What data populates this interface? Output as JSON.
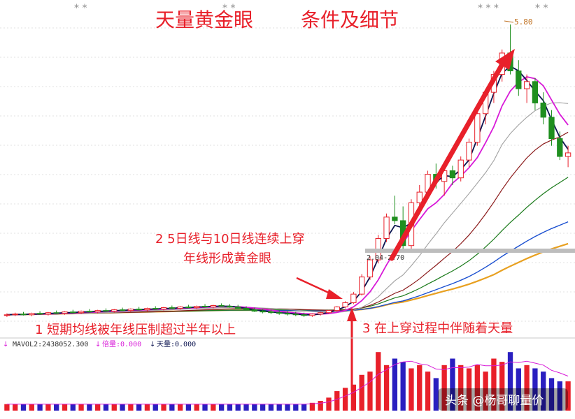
{
  "header": {
    "title_left": "天量黄金眼",
    "title_right": "条件及细节",
    "stars_left": "* *",
    "stars_mid": "* *",
    "stars_right_a": "* * *",
    "stars_right_b": "* *"
  },
  "annotations": {
    "point1": "1 短期均线被年线压制超过半年以上",
    "point2_line1": "2  5日线与10日线连续上穿",
    "point2_line2": "年线形成黄金眼",
    "point3": "3 在上穿过程中伴随着天量",
    "peak_label": "5.80",
    "range_label": "2.04-2.70"
  },
  "volume_header": {
    "mavol_label": "MAVOL2:2438052.300",
    "ratio_label": "倍量:0.000",
    "heavy_label": "天量:0.000",
    "arrow_glyph": "↓",
    "left_marker": "↓"
  },
  "watermark": "头条 @杨哥聊量价",
  "colors": {
    "up": "#e8202a",
    "down": "#1f8f1f",
    "vol_down": "#2a1fc0",
    "ma5": "#0c1450",
    "ma10": "#d81ad8",
    "ma20": "#a0a0a0",
    "ma60": "#8b1a1a",
    "ma120": "#1a7a1a",
    "ma250": "#1a4fd0",
    "ma_year": "#e8a020",
    "title": "#e8202a",
    "annotation": "#e8202a"
  },
  "chart_data": {
    "type": "candlestick",
    "title": "天量黄金眼 条件及细节",
    "price": {
      "high_marker": 5.8,
      "support_band": [
        2.04,
        2.7
      ],
      "candles": [
        [
          1.72,
          1.75,
          1.7,
          1.73
        ],
        [
          1.73,
          1.76,
          1.71,
          1.74
        ],
        [
          1.74,
          1.77,
          1.72,
          1.73
        ],
        [
          1.73,
          1.76,
          1.71,
          1.75
        ],
        [
          1.75,
          1.78,
          1.73,
          1.74
        ],
        [
          1.74,
          1.77,
          1.72,
          1.76
        ],
        [
          1.76,
          1.79,
          1.74,
          1.75
        ],
        [
          1.75,
          1.78,
          1.73,
          1.77
        ],
        [
          1.77,
          1.8,
          1.75,
          1.76
        ],
        [
          1.76,
          1.79,
          1.74,
          1.78
        ],
        [
          1.78,
          1.81,
          1.76,
          1.77
        ],
        [
          1.77,
          1.8,
          1.75,
          1.79
        ],
        [
          1.79,
          1.82,
          1.77,
          1.78
        ],
        [
          1.78,
          1.81,
          1.76,
          1.8
        ],
        [
          1.8,
          1.83,
          1.78,
          1.79
        ],
        [
          1.79,
          1.82,
          1.77,
          1.81
        ],
        [
          1.81,
          1.84,
          1.79,
          1.8
        ],
        [
          1.8,
          1.83,
          1.78,
          1.82
        ],
        [
          1.82,
          1.85,
          1.8,
          1.81
        ],
        [
          1.81,
          1.84,
          1.79,
          1.83
        ],
        [
          1.83,
          1.86,
          1.81,
          1.82
        ],
        [
          1.82,
          1.85,
          1.8,
          1.84
        ],
        [
          1.84,
          1.87,
          1.82,
          1.83
        ],
        [
          1.83,
          1.86,
          1.81,
          1.85
        ],
        [
          1.85,
          1.88,
          1.83,
          1.84
        ],
        [
          1.84,
          1.87,
          1.82,
          1.86
        ],
        [
          1.86,
          1.89,
          1.84,
          1.85
        ],
        [
          1.85,
          1.88,
          1.83,
          1.84
        ],
        [
          1.84,
          1.87,
          1.81,
          1.82
        ],
        [
          1.82,
          1.85,
          1.79,
          1.8
        ],
        [
          1.8,
          1.83,
          1.77,
          1.78
        ],
        [
          1.78,
          1.81,
          1.75,
          1.77
        ],
        [
          1.77,
          1.8,
          1.74,
          1.76
        ],
        [
          1.76,
          1.79,
          1.73,
          1.75
        ],
        [
          1.75,
          1.78,
          1.72,
          1.74
        ],
        [
          1.74,
          1.77,
          1.71,
          1.73
        ],
        [
          1.73,
          1.76,
          1.7,
          1.72
        ],
        [
          1.72,
          1.75,
          1.7,
          1.74
        ],
        [
          1.74,
          1.77,
          1.72,
          1.76
        ],
        [
          1.76,
          1.8,
          1.74,
          1.79
        ],
        [
          1.79,
          1.85,
          1.77,
          1.84
        ],
        [
          1.84,
          1.92,
          1.82,
          1.9
        ],
        [
          1.9,
          2.05,
          1.88,
          2.02
        ],
        [
          2.02,
          2.3,
          2.0,
          2.26
        ],
        [
          2.26,
          2.55,
          2.22,
          2.5
        ],
        [
          2.5,
          2.85,
          2.45,
          2.8
        ],
        [
          2.8,
          3.15,
          2.75,
          3.1
        ],
        [
          3.1,
          3.4,
          3.0,
          3.05
        ],
        [
          3.05,
          3.25,
          2.62,
          2.7
        ],
        [
          2.7,
          3.35,
          2.65,
          3.3
        ],
        [
          3.3,
          3.55,
          3.2,
          3.45
        ],
        [
          3.45,
          3.75,
          3.35,
          3.7
        ],
        [
          3.7,
          3.85,
          3.5,
          3.6
        ],
        [
          3.6,
          3.8,
          3.4,
          3.75
        ],
        [
          3.75,
          3.82,
          3.55,
          3.65
        ],
        [
          3.65,
          3.95,
          3.6,
          3.9
        ],
        [
          3.9,
          4.2,
          3.8,
          4.15
        ],
        [
          4.15,
          4.6,
          4.1,
          4.55
        ],
        [
          4.55,
          4.9,
          4.4,
          4.85
        ],
        [
          4.85,
          5.15,
          4.7,
          5.1
        ],
        [
          5.1,
          5.45,
          5.0,
          5.4
        ],
        [
          5.4,
          5.8,
          5.1,
          5.15
        ],
        [
          5.15,
          5.3,
          4.8,
          4.9
        ],
        [
          4.9,
          5.1,
          4.7,
          5.0
        ],
        [
          5.0,
          5.05,
          4.6,
          4.7
        ],
        [
          4.7,
          4.85,
          4.4,
          4.5
        ],
        [
          4.5,
          4.6,
          4.1,
          4.2
        ],
        [
          4.2,
          4.3,
          3.9,
          3.95
        ],
        [
          3.95,
          4.1,
          3.8,
          4.0
        ]
      ]
    },
    "volume": {
      "values": [
        1,
        1,
        1,
        1,
        1,
        1,
        1,
        1,
        1,
        1,
        1,
        1,
        1,
        1,
        1,
        1,
        1,
        1,
        1,
        1,
        1,
        1,
        1,
        1,
        1,
        1,
        1,
        1,
        1,
        1,
        1,
        1,
        1,
        1,
        1,
        1,
        1,
        1.2,
        1.5,
        2,
        3,
        3.5,
        4,
        5.5,
        6,
        9,
        7,
        8,
        7.5,
        6.5,
        7,
        6,
        5,
        7,
        8,
        7,
        6.5,
        7,
        6,
        8,
        7.5,
        9,
        6.5,
        7,
        6.5,
        6,
        5,
        4.5,
        4.5
      ]
    }
  }
}
